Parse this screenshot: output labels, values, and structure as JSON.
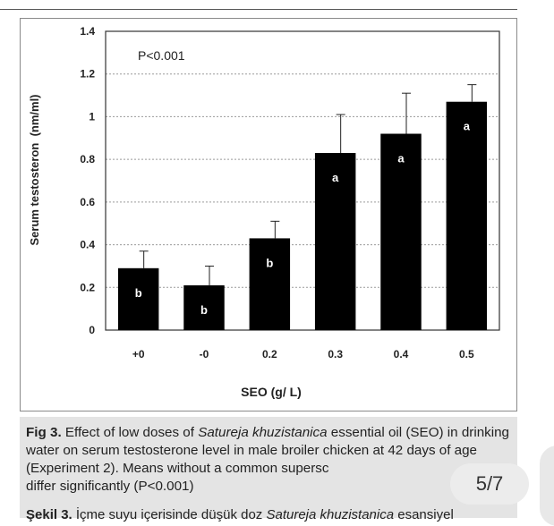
{
  "chart_data": {
    "type": "bar",
    "categories": [
      "+0",
      "-0",
      "0.2",
      "0.3",
      "0.4",
      "0.5"
    ],
    "values": [
      0.29,
      0.21,
      0.43,
      0.83,
      0.92,
      1.07
    ],
    "errors": [
      0.08,
      0.09,
      0.08,
      0.18,
      0.19,
      0.08
    ],
    "bar_labels": [
      "b",
      "b",
      "b",
      "a",
      "a",
      "a"
    ],
    "xlabel": "SEO (g/ L)",
    "ylabel": "Serum testosteron  (nm/ml)",
    "ylim": [
      0,
      1.4
    ],
    "yticks": [
      0,
      0.2,
      0.4,
      0.6,
      0.8,
      1,
      1.2,
      1.4
    ],
    "ytick_labels": [
      "0",
      "0.2",
      "0.4",
      "0.6",
      "0.8",
      "1",
      "1.2",
      "1.4"
    ],
    "annotation": "P<0.001",
    "grid": "horizontal dashed",
    "bar_color": "#000000"
  },
  "caption": {
    "label": "Fig 3.",
    "text_1": " Effect of low doses of ",
    "species": "Satureja khuzistanica",
    "text_2": " essential oil (SEO) in drinking water on serum testosterone level in male broiler chicken at 42 days of age (Experiment 2). Means without a common supersc",
    "text_3": "differ significantly (P<0.001)"
  },
  "next_caption": {
    "label": "Şekil 3.",
    "text_1": " İçme suyu içerisinde düşük doz ",
    "species": "Satureja khuzistanica",
    "text_2": " esansiyel"
  },
  "page_indicator": "5/7"
}
